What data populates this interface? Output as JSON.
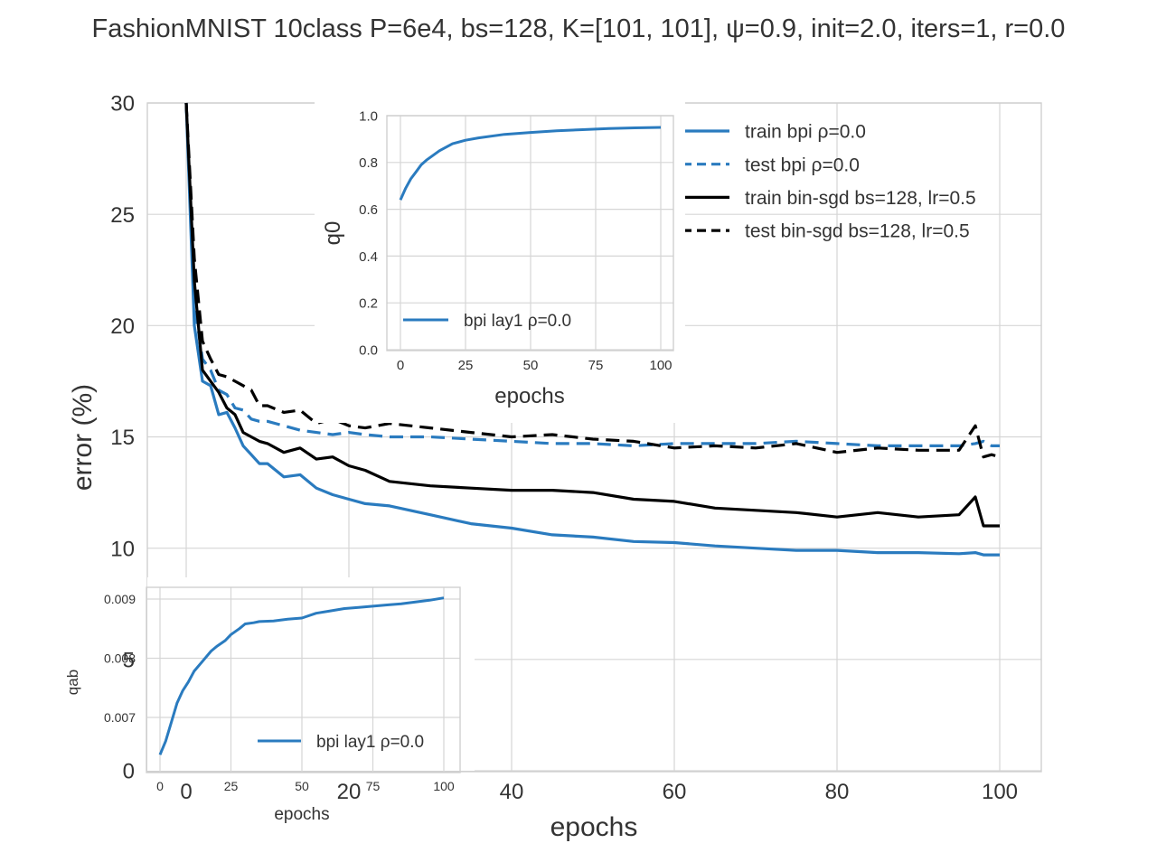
{
  "chart_data": [
    {
      "id": "main",
      "type": "line",
      "title": "FashionMNIST 10class P=6e4, bs=128, K=[101, 101], ψ=0.9, init=2.0, iters=1, r=0.0",
      "xlabel": "epochs",
      "ylabel": "error (%)",
      "xlim": [
        -6,
        105
      ],
      "ylim": [
        0,
        30
      ],
      "xticks": [
        0,
        20,
        40,
        60,
        80,
        100
      ],
      "xtick_labels": [
        "0",
        "20",
        "40",
        "60",
        "80",
        "100"
      ],
      "yticks": [
        0,
        5,
        10,
        15,
        20,
        25,
        30
      ],
      "ytick_labels": [
        "0",
        "5",
        "10",
        "15",
        "20",
        "25",
        "30"
      ],
      "grid": true,
      "legend_position": "top-right",
      "x": [
        0,
        1,
        2,
        3,
        4,
        5,
        6,
        7,
        8,
        9,
        10,
        12,
        14,
        16,
        18,
        20,
        22,
        25,
        30,
        35,
        40,
        45,
        50,
        55,
        60,
        65,
        70,
        75,
        80,
        85,
        90,
        95,
        97,
        98,
        99,
        100
      ],
      "series": [
        {
          "name": "train bpi ρ=0.0",
          "color": "#2a7bbf",
          "dash": "solid",
          "values": [
            30,
            20.0,
            17.5,
            17.3,
            16.0,
            16.1,
            15.4,
            14.6,
            14.2,
            13.8,
            13.8,
            13.2,
            13.3,
            12.7,
            12.4,
            12.2,
            12.0,
            11.9,
            11.5,
            11.1,
            10.9,
            10.6,
            10.5,
            10.3,
            10.25,
            10.1,
            10.0,
            9.9,
            9.9,
            9.8,
            9.8,
            9.75,
            9.8,
            9.7,
            9.7,
            9.7
          ]
        },
        {
          "name": "test bpi ρ=0.0",
          "color": "#2a7bbf",
          "dash": "dashed",
          "values": [
            30,
            21.0,
            18.5,
            18.0,
            17.1,
            16.9,
            16.3,
            16.2,
            15.8,
            15.7,
            15.7,
            15.5,
            15.3,
            15.2,
            15.1,
            15.2,
            15.1,
            15.0,
            15.0,
            14.9,
            14.8,
            14.7,
            14.7,
            14.6,
            14.7,
            14.7,
            14.7,
            14.8,
            14.7,
            14.6,
            14.6,
            14.6,
            14.7,
            14.8,
            14.6,
            14.6
          ]
        },
        {
          "name": "train bin-sgd bs=128, lr=0.5",
          "color": "#000000",
          "dash": "solid",
          "values": [
            30,
            22.0,
            18.0,
            17.5,
            17.0,
            16.3,
            16.0,
            15.2,
            15.0,
            14.8,
            14.7,
            14.3,
            14.5,
            14.0,
            14.1,
            13.7,
            13.5,
            13.0,
            12.8,
            12.7,
            12.6,
            12.6,
            12.5,
            12.2,
            12.1,
            11.8,
            11.7,
            11.6,
            11.4,
            11.6,
            11.4,
            11.5,
            12.3,
            11.0,
            11.0,
            11.0
          ]
        },
        {
          "name": "test bin-sgd bs=128, lr=0.5",
          "color": "#000000",
          "dash": "dashed",
          "values": [
            30,
            23.0,
            19.3,
            18.5,
            17.8,
            17.7,
            17.5,
            17.3,
            17.1,
            16.4,
            16.4,
            16.1,
            16.2,
            15.6,
            15.8,
            15.5,
            15.4,
            15.6,
            15.4,
            15.2,
            15.0,
            15.1,
            14.9,
            14.8,
            14.5,
            14.6,
            14.5,
            14.7,
            14.3,
            14.5,
            14.4,
            14.4,
            15.5,
            14.1,
            14.2,
            14.1
          ]
        }
      ]
    },
    {
      "id": "inset-q0",
      "type": "line",
      "xlabel": "epochs",
      "ylabel": "q0",
      "xlim": [
        -5,
        105
      ],
      "ylim": [
        0,
        1.0
      ],
      "xticks": [
        0,
        25,
        50,
        75,
        100
      ],
      "xtick_labels": [
        "0",
        "25",
        "50",
        "75",
        "100"
      ],
      "yticks": [
        0,
        0.2,
        0.4,
        0.6,
        0.8,
        1.0
      ],
      "ytick_labels": [
        "0.0",
        "0.2",
        "0.4",
        "0.6",
        "0.8",
        "1.0"
      ],
      "grid": true,
      "legend_position": "lower-left",
      "x": [
        0,
        2,
        4,
        6,
        8,
        10,
        15,
        20,
        25,
        30,
        40,
        50,
        60,
        70,
        80,
        90,
        100
      ],
      "series": [
        {
          "name": "bpi lay1 ρ=0.0",
          "color": "#2a7bbf",
          "dash": "solid",
          "values": [
            0.64,
            0.69,
            0.73,
            0.76,
            0.79,
            0.81,
            0.85,
            0.88,
            0.895,
            0.905,
            0.92,
            0.928,
            0.935,
            0.94,
            0.945,
            0.948,
            0.95
          ]
        }
      ]
    },
    {
      "id": "inset-qab",
      "type": "line",
      "xlabel": "epochs",
      "ylabel": "qab",
      "xlim": [
        -5,
        105
      ],
      "ylim": [
        0.00619,
        0.00918
      ],
      "xticks": [
        0,
        25,
        50,
        75,
        100
      ],
      "xtick_labels": [
        "0",
        "25",
        "50",
        "75",
        "100"
      ],
      "yticks": [
        0.007,
        0.008,
        0.009
      ],
      "ytick_labels": [
        "0.007",
        "0.008",
        "0.009"
      ],
      "grid": true,
      "legend_position": "lower-right",
      "x": [
        0,
        2,
        4,
        6,
        8,
        10,
        12,
        15,
        18,
        20,
        23,
        25,
        28,
        30,
        33,
        35,
        40,
        45,
        50,
        55,
        60,
        65,
        70,
        75,
        80,
        85,
        90,
        95,
        100
      ],
      "series": [
        {
          "name": "bpi lay1 ρ=0.0",
          "color": "#2a7bbf",
          "dash": "solid",
          "values": [
            0.00637,
            0.0066,
            0.00692,
            0.00724,
            0.00745,
            0.0076,
            0.00778,
            0.00795,
            0.00812,
            0.0082,
            0.0083,
            0.0084,
            0.0085,
            0.00858,
            0.0086,
            0.00862,
            0.00863,
            0.00866,
            0.00868,
            0.00876,
            0.0088,
            0.00884,
            0.00886,
            0.00888,
            0.0089,
            0.00892,
            0.00895,
            0.00898,
            0.00902
          ]
        }
      ]
    }
  ]
}
